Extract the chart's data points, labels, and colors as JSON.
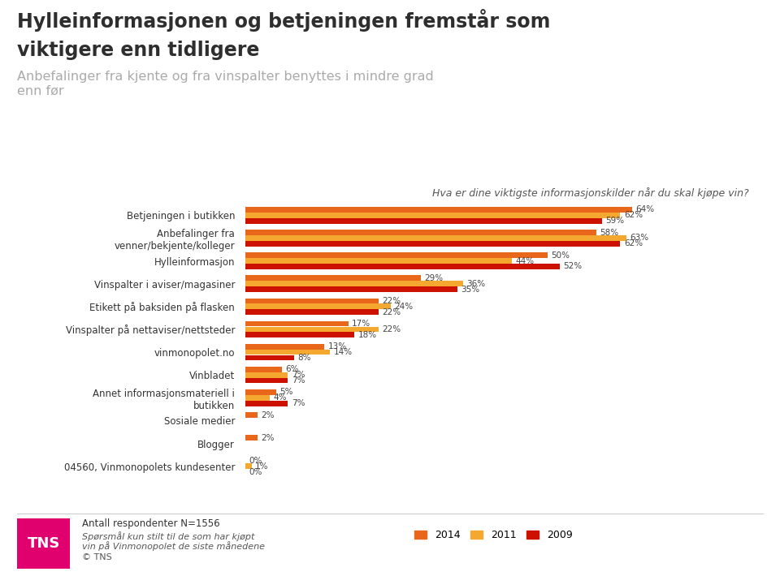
{
  "title_line1": "Hylleinformasjonen og betjeningen fremstår som",
  "title_line2": "viktigere enn tidligere",
  "subtitle": "Anbefalinger fra kjente og fra vinspalter benyttes i mindre grad\nenn før",
  "question": "Hva er dine viktigste informasjonskilder når du skal kjøpe vin?",
  "categories": [
    "Betjeningen i butikken",
    "Anbefalinger fra\nvenner/bekjente/kolleger",
    "Hylleinformasjon",
    "Vinspalter i aviser/magasiner",
    "Etikett på baksiden på flasken",
    "Vinspalter på nettaviser/nettsteder",
    "vinmonopolet.no",
    "Vinbladet",
    "Annet informasjonsmateriell i\nbutikken",
    "Sosiale medier",
    "Blogger",
    "04560, Vinmonopolets kundesenter"
  ],
  "values_2014": [
    64,
    58,
    50,
    29,
    22,
    17,
    13,
    6,
    5,
    2,
    2,
    0
  ],
  "values_2011": [
    62,
    63,
    44,
    36,
    24,
    22,
    14,
    7,
    4,
    null,
    null,
    1
  ],
  "values_2009": [
    59,
    62,
    52,
    35,
    22,
    18,
    8,
    7,
    7,
    null,
    null,
    0
  ],
  "color_2014": "#E8671A",
  "color_2011": "#F5A830",
  "color_2009": "#CC1100",
  "footnote_line1": "Antall respondenter N=1556",
  "footnote_line2": "Spørsmål kun stilt til de som har kjøpt",
  "footnote_line3": "vin på Vinmonopolet de siste månedene",
  "footnote_line4": "© TNS",
  "background_color": "#FFFFFF"
}
